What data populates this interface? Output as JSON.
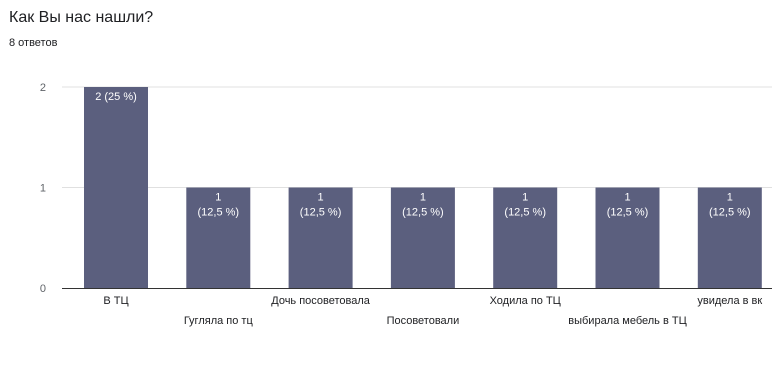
{
  "header": {
    "title": "Как Вы нас нашли?",
    "subtitle": "8 ответов"
  },
  "colors": {
    "bar": "#5b5f7e",
    "bar_label": "#ffffff",
    "text": "#202124",
    "axis_text": "#5f6368",
    "gridline": "#e0e0e0",
    "baseline": "#333333"
  },
  "chart_data": {
    "type": "bar",
    "title": "Как Вы нас нашли?",
    "subtitle": "8 ответов",
    "xlabel": "",
    "ylabel": "",
    "ylim": [
      0,
      2
    ],
    "yticks": [
      "0",
      "1",
      "2"
    ],
    "grid": true,
    "legend": "none",
    "categories": [
      "В ТЦ",
      "Гугляла по тц",
      "Дочь посоветовала",
      "Посоветовали",
      "Ходила по ТЦ",
      "выбирала мебель в ТЦ",
      "увидела в вк"
    ],
    "values": [
      2,
      1,
      1,
      1,
      1,
      1,
      1
    ],
    "data_labels": [
      [
        "2 (25 %)"
      ],
      [
        "1",
        "(12,5 %)"
      ],
      [
        "1",
        "(12,5 %)"
      ],
      [
        "1",
        "(12,5 %)"
      ],
      [
        "1",
        "(12,5 %)"
      ],
      [
        "1",
        "(12,5 %)"
      ],
      [
        "1",
        "(12,5 %)"
      ]
    ]
  }
}
